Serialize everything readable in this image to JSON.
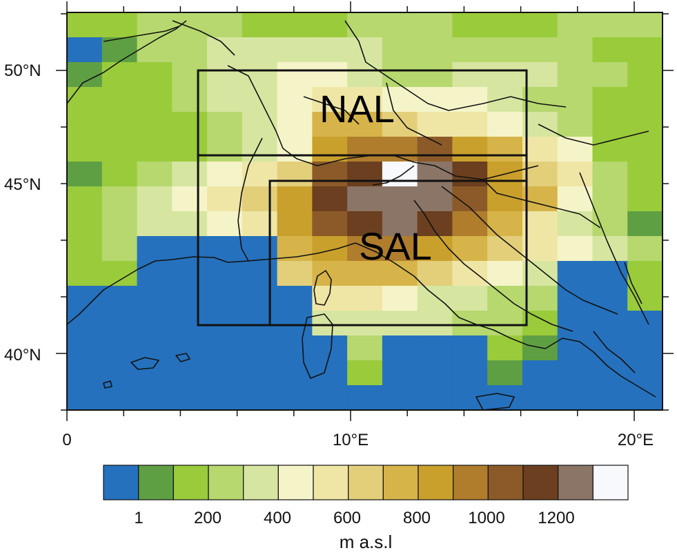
{
  "map": {
    "lat_ticks": [
      {
        "label": "50°N",
        "lat": 50
      },
      {
        "label": "45°N",
        "lat": 45
      },
      {
        "label": "40°N",
        "lat": 40
      }
    ],
    "lon_ticks": [
      {
        "label": "0",
        "lon": 0
      },
      {
        "label": "10°E",
        "lon": 10
      },
      {
        "label": "20°E",
        "lon": 20
      }
    ],
    "regions": [
      {
        "label": "NAL"
      },
      {
        "label": "SAL"
      }
    ]
  },
  "colorbar": {
    "colors": [
      "#2571bd",
      "#5f9f43",
      "#9acb3b",
      "#b6d86e",
      "#d6e6a1",
      "#f5f4c9",
      "#efe6a6",
      "#e3cf7a",
      "#d6b449",
      "#caa02c",
      "#b07d2d",
      "#8c5a29",
      "#6b3f1f",
      "#8b7567",
      "#f7f9fc"
    ],
    "tick_labels": [
      "1",
      "200",
      "400",
      "600",
      "800",
      "1000",
      "1200"
    ],
    "unit": "m a.s.l"
  }
}
